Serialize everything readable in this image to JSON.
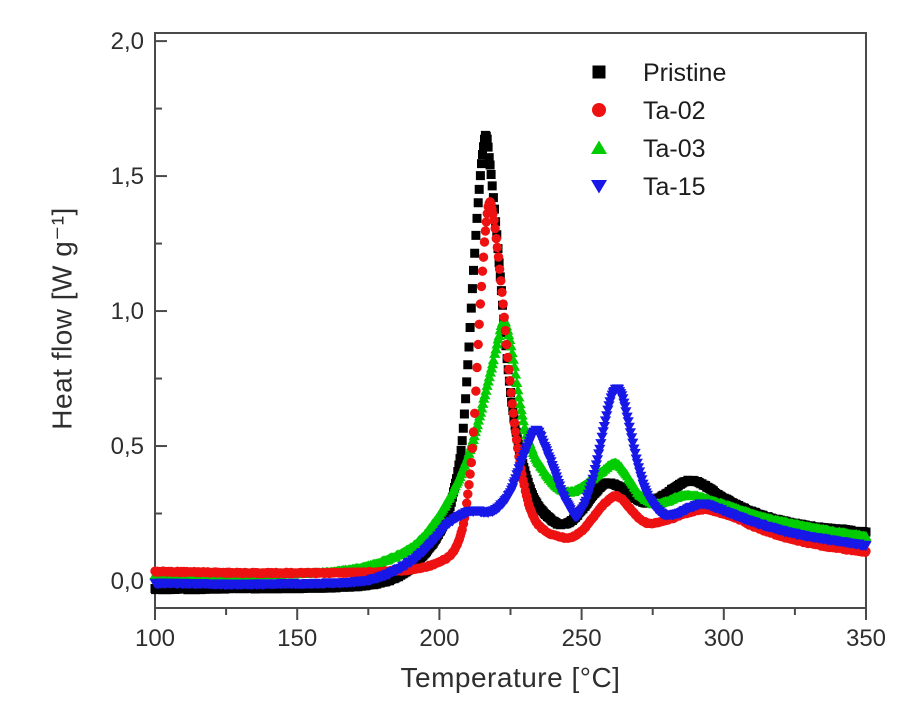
{
  "chart_data": {
    "type": "scatter",
    "title": "",
    "xlabel": "Temperature [°C]",
    "ylabel": "Heat flow [W g⁻¹]",
    "xlim": [
      100,
      350
    ],
    "ylim": [
      -0.1,
      2.03
    ],
    "grid": false,
    "legend_position": "top-right-inside",
    "axis_color": "#4a4a4a",
    "text_color": "#2e2e2e",
    "x_ticks": [
      100,
      150,
      200,
      250,
      300,
      350
    ],
    "x_tick_labels": [
      "100",
      "150",
      "200",
      "250",
      "300",
      "350"
    ],
    "x_minor_ticks": [
      125,
      175,
      225,
      275,
      325
    ],
    "y_ticks": [
      0.0,
      0.5,
      1.0,
      1.5,
      2.0
    ],
    "y_tick_labels": [
      "0,0",
      "0,5",
      "1,0",
      "1,5",
      "2,0"
    ],
    "y_minor_ticks": [
      0.25,
      0.75,
      1.25,
      1.75
    ],
    "draw_order": [
      0,
      2,
      1,
      3
    ],
    "series": [
      {
        "name": "Pristine",
        "marker": "square",
        "color": "#000000",
        "peak_summary": "sharp exotherm 1.65 W/g at 216 °C, bumps 0.36 at 258 °C and 0.37 at 287 °C",
        "points": [
          [
            100,
            -0.03
          ],
          [
            115,
            -0.03
          ],
          [
            130,
            -0.028
          ],
          [
            145,
            -0.027
          ],
          [
            160,
            -0.025
          ],
          [
            170,
            -0.02
          ],
          [
            178,
            -0.01
          ],
          [
            184,
            0.01
          ],
          [
            189,
            0.04
          ],
          [
            193,
            0.08
          ],
          [
            197,
            0.13
          ],
          [
            200,
            0.18
          ],
          [
            203,
            0.25
          ],
          [
            206,
            0.38
          ],
          [
            208,
            0.52
          ],
          [
            210,
            0.8
          ],
          [
            212,
            1.15
          ],
          [
            214,
            1.45
          ],
          [
            215.5,
            1.61
          ],
          [
            216.5,
            1.65
          ],
          [
            217.5,
            1.57
          ],
          [
            219,
            1.42
          ],
          [
            221,
            1.18
          ],
          [
            223,
            0.92
          ],
          [
            225,
            0.7
          ],
          [
            227,
            0.55
          ],
          [
            229,
            0.45
          ],
          [
            232,
            0.34
          ],
          [
            235,
            0.275
          ],
          [
            238,
            0.24
          ],
          [
            241,
            0.215
          ],
          [
            243,
            0.21
          ],
          [
            246,
            0.22
          ],
          [
            249,
            0.25
          ],
          [
            252,
            0.29
          ],
          [
            255,
            0.33
          ],
          [
            258,
            0.36
          ],
          [
            261,
            0.36
          ],
          [
            264,
            0.345
          ],
          [
            267,
            0.32
          ],
          [
            270,
            0.3
          ],
          [
            273,
            0.29
          ],
          [
            276,
            0.3
          ],
          [
            280,
            0.325
          ],
          [
            284,
            0.355
          ],
          [
            287,
            0.37
          ],
          [
            290,
            0.37
          ],
          [
            294,
            0.35
          ],
          [
            298,
            0.32
          ],
          [
            303,
            0.29
          ],
          [
            309,
            0.26
          ],
          [
            316,
            0.235
          ],
          [
            324,
            0.215
          ],
          [
            333,
            0.2
          ],
          [
            342,
            0.19
          ],
          [
            350,
            0.18
          ]
        ]
      },
      {
        "name": "Ta-02",
        "marker": "circle",
        "color": "#ee1111",
        "peak_summary": "peak 1.40 W/g at 217.5 °C, bumps 0.32 at 262 °C and 0.27 at 293 °C",
        "points": [
          [
            100,
            0.035
          ],
          [
            115,
            0.033
          ],
          [
            130,
            0.03
          ],
          [
            145,
            0.03
          ],
          [
            160,
            0.03
          ],
          [
            172,
            0.032
          ],
          [
            182,
            0.036
          ],
          [
            190,
            0.042
          ],
          [
            196,
            0.055
          ],
          [
            201,
            0.075
          ],
          [
            205,
            0.11
          ],
          [
            208,
            0.19
          ],
          [
            210,
            0.32
          ],
          [
            212,
            0.55
          ],
          [
            214,
            0.95
          ],
          [
            215.5,
            1.2
          ],
          [
            216.5,
            1.33
          ],
          [
            217.5,
            1.4
          ],
          [
            218.5,
            1.38
          ],
          [
            220,
            1.27
          ],
          [
            222,
            1.07
          ],
          [
            224,
            0.83
          ],
          [
            226,
            0.62
          ],
          [
            228,
            0.46
          ],
          [
            231,
            0.3
          ],
          [
            234,
            0.22
          ],
          [
            238,
            0.18
          ],
          [
            242,
            0.165
          ],
          [
            245,
            0.16
          ],
          [
            248,
            0.17
          ],
          [
            251,
            0.195
          ],
          [
            254,
            0.235
          ],
          [
            257,
            0.275
          ],
          [
            260,
            0.305
          ],
          [
            262,
            0.315
          ],
          [
            264,
            0.305
          ],
          [
            267,
            0.27
          ],
          [
            270,
            0.235
          ],
          [
            273,
            0.215
          ],
          [
            276,
            0.215
          ],
          [
            280,
            0.225
          ],
          [
            285,
            0.245
          ],
          [
            290,
            0.26
          ],
          [
            294,
            0.265
          ],
          [
            298,
            0.255
          ],
          [
            304,
            0.235
          ],
          [
            311,
            0.2
          ],
          [
            319,
            0.17
          ],
          [
            328,
            0.145
          ],
          [
            338,
            0.125
          ],
          [
            350,
            0.108
          ]
        ]
      },
      {
        "name": "Ta-03",
        "marker": "triangle-up",
        "color": "#00cc00",
        "peak_summary": "peak 0.97 W/g at 222.5 °C, bump 0.44 at 262 °C",
        "points": [
          [
            100,
            0.02
          ],
          [
            115,
            0.02
          ],
          [
            130,
            0.022
          ],
          [
            145,
            0.025
          ],
          [
            158,
            0.03
          ],
          [
            167,
            0.04
          ],
          [
            175,
            0.055
          ],
          [
            182,
            0.08
          ],
          [
            188,
            0.11
          ],
          [
            193,
            0.15
          ],
          [
            198,
            0.215
          ],
          [
            202,
            0.28
          ],
          [
            206,
            0.36
          ],
          [
            210,
            0.46
          ],
          [
            213,
            0.565
          ],
          [
            216,
            0.69
          ],
          [
            219,
            0.82
          ],
          [
            221,
            0.91
          ],
          [
            222.5,
            0.965
          ],
          [
            224,
            0.93
          ],
          [
            226,
            0.82
          ],
          [
            228,
            0.68
          ],
          [
            230,
            0.57
          ],
          [
            233,
            0.475
          ],
          [
            236,
            0.42
          ],
          [
            239,
            0.375
          ],
          [
            242,
            0.345
          ],
          [
            245,
            0.33
          ],
          [
            248,
            0.335
          ],
          [
            251,
            0.355
          ],
          [
            254,
            0.38
          ],
          [
            257,
            0.405
          ],
          [
            260,
            0.43
          ],
          [
            262,
            0.435
          ],
          [
            264,
            0.42
          ],
          [
            267,
            0.375
          ],
          [
            270,
            0.325
          ],
          [
            273,
            0.3
          ],
          [
            276,
            0.285
          ],
          [
            280,
            0.295
          ],
          [
            285,
            0.315
          ],
          [
            290,
            0.315
          ],
          [
            295,
            0.3
          ],
          [
            301,
            0.28
          ],
          [
            308,
            0.255
          ],
          [
            316,
            0.23
          ],
          [
            325,
            0.21
          ],
          [
            335,
            0.19
          ],
          [
            350,
            0.165
          ]
        ]
      },
      {
        "name": "Ta-15",
        "marker": "triangle-down",
        "color": "#1717e8",
        "peak_summary": "shoulder 0.26 near 213 °C, peaks 0.56 at 234 °C and 0.71 at 262 °C, bump 0.29 at 292 °C",
        "points": [
          [
            100,
            -0.008
          ],
          [
            115,
            -0.01
          ],
          [
            130,
            -0.012
          ],
          [
            145,
            -0.01
          ],
          [
            158,
            -0.008
          ],
          [
            168,
            -0.005
          ],
          [
            176,
            0.005
          ],
          [
            183,
            0.03
          ],
          [
            189,
            0.065
          ],
          [
            194,
            0.105
          ],
          [
            199,
            0.16
          ],
          [
            203,
            0.21
          ],
          [
            207,
            0.24
          ],
          [
            210,
            0.255
          ],
          [
            213,
            0.26
          ],
          [
            216,
            0.255
          ],
          [
            219,
            0.26
          ],
          [
            222,
            0.285
          ],
          [
            225,
            0.33
          ],
          [
            228,
            0.415
          ],
          [
            231,
            0.5
          ],
          [
            233.5,
            0.555
          ],
          [
            235,
            0.55
          ],
          [
            237,
            0.5
          ],
          [
            240,
            0.42
          ],
          [
            243,
            0.33
          ],
          [
            246,
            0.265
          ],
          [
            248,
            0.24
          ],
          [
            250,
            0.26
          ],
          [
            252,
            0.31
          ],
          [
            254,
            0.38
          ],
          [
            256,
            0.47
          ],
          [
            258,
            0.575
          ],
          [
            260,
            0.665
          ],
          [
            261.5,
            0.705
          ],
          [
            263,
            0.71
          ],
          [
            264.5,
            0.675
          ],
          [
            266,
            0.61
          ],
          [
            268,
            0.51
          ],
          [
            270,
            0.42
          ],
          [
            272,
            0.35
          ],
          [
            274,
            0.3
          ],
          [
            277,
            0.26
          ],
          [
            280,
            0.245
          ],
          [
            284,
            0.25
          ],
          [
            288,
            0.27
          ],
          [
            292,
            0.285
          ],
          [
            295,
            0.28
          ],
          [
            300,
            0.26
          ],
          [
            306,
            0.235
          ],
          [
            313,
            0.21
          ],
          [
            321,
            0.185
          ],
          [
            330,
            0.165
          ],
          [
            340,
            0.148
          ],
          [
            350,
            0.132
          ]
        ]
      }
    ],
    "legend": {
      "entries": [
        "Pristine",
        "Ta-02",
        "Ta-03",
        "Ta-15"
      ]
    }
  }
}
